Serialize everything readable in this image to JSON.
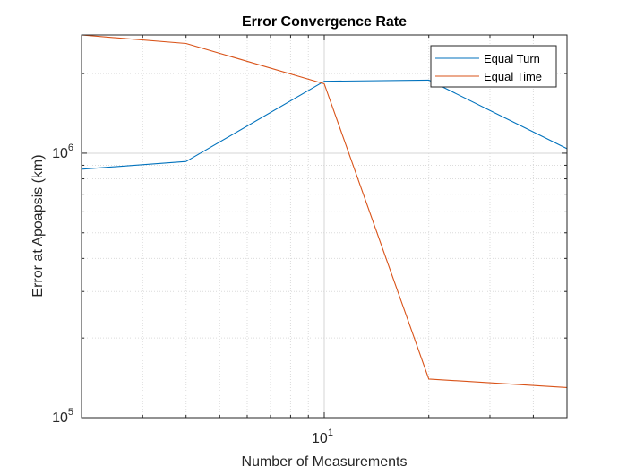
{
  "chart_data": {
    "type": "line",
    "title": "Error Convergence Rate",
    "xlabel": "Number of Measurements",
    "ylabel": "Error at Apoapsis (km)",
    "xscale": "log",
    "yscale": "log",
    "xlim": [
      2,
      50
    ],
    "ylim": [
      100000,
      2800000
    ],
    "x_ticks": [
      {
        "base": "10",
        "exp": "1",
        "value": 10
      }
    ],
    "y_ticks": [
      {
        "base": "10",
        "exp": "5",
        "value": 100000
      },
      {
        "base": "10",
        "exp": "6",
        "value": 1000000
      }
    ],
    "grid": true,
    "minor_grid": true,
    "legend_position": "top-right",
    "series": [
      {
        "name": "Equal Turn",
        "color": "#0072BD",
        "x": [
          2,
          4,
          10,
          20,
          50
        ],
        "y": [
          870000,
          930000,
          1870000,
          1890000,
          1040000
        ]
      },
      {
        "name": "Equal Time",
        "color": "#D95319",
        "x": [
          2,
          4,
          10,
          20,
          50
        ],
        "y": [
          2800000,
          2600000,
          1830000,
          140000,
          130000
        ]
      }
    ]
  }
}
